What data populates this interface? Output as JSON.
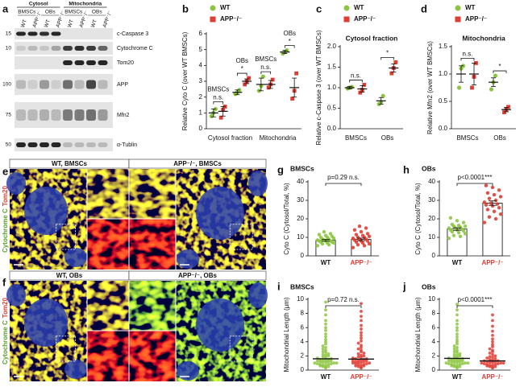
{
  "panels": [
    "a",
    "b",
    "c",
    "d",
    "e",
    "f",
    "g",
    "h",
    "i",
    "j"
  ],
  "blot": {
    "fractions": [
      "Cytosol",
      "Mitochondria"
    ],
    "cell_types": [
      "BMSCs",
      "OBs",
      "BMSCs",
      "OBs"
    ],
    "lanes": [
      "WT",
      "APP⁻/⁻",
      "WT",
      "APP⁻/⁻",
      "WT",
      "APP⁻/⁻",
      "WT",
      "APP⁻/⁻"
    ],
    "rows": [
      {
        "label": "c-Caspase 3",
        "mw": 15
      },
      {
        "label": "Cytochrome C",
        "mw": 10
      },
      {
        "label": "Tom20"
      },
      {
        "label": "APP",
        "mw": 100
      },
      {
        "label": "Mfn2",
        "mw": 75
      },
      {
        "label": "α-Tublin",
        "mw": 50
      }
    ]
  },
  "images": {
    "stain": [
      "Cytochrome C",
      "Tom20"
    ],
    "e": {
      "left": "WT, BMSCs",
      "right": "APP⁻/⁻, BMSCs"
    },
    "f": {
      "left": "WT, OBs",
      "right": "APP⁻/⁻, OBs"
    }
  },
  "chart_data": [
    {
      "type": "dotplot",
      "ylabel": "Relative Cyto C (over WT BMSCs)",
      "groups": [
        "Cytosol fraction",
        "Mitochondria"
      ],
      "categories": [
        "BMSCs",
        "OBs",
        "BMSCs",
        "OBs"
      ],
      "significance": [
        "n.s.",
        "*",
        "n.s.",
        "*"
      ],
      "ylim": [
        0,
        6
      ],
      "yticks": [
        0,
        1,
        2,
        3,
        4,
        5,
        6
      ],
      "series": [
        {
          "name": "WT",
          "color": "#8cc63f",
          "values": [
            1.0,
            2.3,
            2.8,
            4.85
          ],
          "errors": [
            0.25,
            0.15,
            0.4,
            0.1
          ],
          "points": [
            [
              0.8,
              1.0,
              1.25
            ],
            [
              2.2,
              2.3,
              2.45
            ],
            [
              2.4,
              2.7,
              3.3
            ],
            [
              4.75,
              4.85,
              4.95
            ]
          ]
        },
        {
          "name": "APP⁻/⁻",
          "color": "#e03c31",
          "values": [
            1.1,
            3.0,
            2.8,
            2.6
          ],
          "errors": [
            0.3,
            0.15,
            0.25,
            0.6
          ],
          "points": [
            [
              0.7,
              1.2,
              1.4
            ],
            [
              2.8,
              3.0,
              3.2
            ],
            [
              2.6,
              2.8,
              3.1
            ],
            [
              1.9,
              2.4,
              3.5
            ]
          ]
        }
      ]
    },
    {
      "type": "dotplot",
      "title": "Cytosol fraction",
      "ylabel": "Relative c-Caspase 3 (over WT BMSCs)",
      "categories": [
        "BMSCs",
        "OBs"
      ],
      "significance": [
        "n.s.",
        "*"
      ],
      "ylim": [
        0,
        2
      ],
      "yticks": [
        {
          "value": 0,
          "label": "0.0"
        },
        {
          "value": 0.5,
          "label": "0.5"
        },
        {
          "value": 1,
          "label": "1.0"
        },
        {
          "value": 1.5,
          "label": "1.5"
        },
        {
          "value": 2,
          "label": "2.0"
        }
      ],
      "series": [
        {
          "name": "WT",
          "color": "#8cc63f",
          "values": [
            1.0,
            0.68
          ],
          "errors": [
            0.03,
            0.08
          ],
          "points": [
            [
              0.98,
              1.0,
              1.02
            ],
            [
              0.6,
              0.65,
              0.8
            ]
          ]
        },
        {
          "name": "APP⁻/⁻",
          "color": "#e03c31",
          "values": [
            0.97,
            1.48
          ],
          "errors": [
            0.08,
            0.1
          ],
          "points": [
            [
              0.88,
              0.95,
              1.07
            ],
            [
              1.35,
              1.48,
              1.62
            ]
          ]
        }
      ]
    },
    {
      "type": "dotplot",
      "title": "Mitochondria",
      "ylabel": "Relative Mfn2 (over WT BMSCs)",
      "categories": [
        "BMSCs",
        "OBs"
      ],
      "significance": [
        "n.s.",
        "*"
      ],
      "ylim": [
        0,
        1.5
      ],
      "yticks": [
        {
          "value": 0,
          "label": "0.0"
        },
        {
          "value": 0.5,
          "label": "0.5"
        },
        {
          "value": 1,
          "label": "1.0"
        },
        {
          "value": 1.5,
          "label": "1.5"
        }
      ],
      "series": [
        {
          "name": "WT",
          "color": "#8cc63f",
          "values": [
            1.0,
            0.85
          ],
          "errors": [
            0.15,
            0.08
          ],
          "points": [
            [
              0.75,
              1.1,
              1.15
            ],
            [
              0.72,
              0.85,
              0.97
            ]
          ]
        },
        {
          "name": "APP⁻/⁻",
          "color": "#e03c31",
          "values": [
            1.0,
            0.35
          ],
          "errors": [
            0.2,
            0.04
          ],
          "points": [
            [
              0.75,
              0.95,
              1.2
            ],
            [
              0.3,
              0.35,
              0.4
            ]
          ]
        }
      ]
    },
    {
      "type": "bar",
      "title": "BMSCs",
      "ylabel": "Cyto C (Cytosol/Total, %)",
      "annotation": "p=0.29 n.s.",
      "categories": [
        "WT",
        "APP⁻/⁻"
      ],
      "colors": [
        "#8cc63f",
        "#e03c31"
      ],
      "values": [
        8.4,
        8.9
      ],
      "errors": [
        0.5,
        0.7
      ],
      "points": [
        [
          5.5,
          6,
          6.5,
          7,
          7,
          7.5,
          7.5,
          8,
          8,
          8,
          8.5,
          8.5,
          9,
          9,
          9.5,
          10,
          10,
          10.5,
          11,
          11.5,
          12,
          13
        ],
        [
          4.5,
          5.5,
          6,
          6.5,
          7,
          7.5,
          8,
          8,
          8.5,
          9,
          9,
          9.5,
          10,
          10,
          10.5,
          11,
          11.5,
          12,
          13,
          14,
          15,
          16
        ]
      ],
      "ylim": [
        0,
        40
      ],
      "yticks": [
        0,
        10,
        20,
        30,
        40
      ]
    },
    {
      "type": "bar",
      "title": "OBs",
      "ylabel": "Cyto C (Cytosol/Total, %)",
      "annotation": "p<0.0001***",
      "categories": [
        "WT",
        "APP⁻/⁻"
      ],
      "colors": [
        "#8cc63f",
        "#e03c31"
      ],
      "values": [
        14.5,
        28.5
      ],
      "errors": [
        0.7,
        1.2
      ],
      "points": [
        [
          9.5,
          10.5,
          11,
          12,
          12.5,
          13,
          13.5,
          14,
          14,
          14.5,
          15,
          15,
          15.5,
          16,
          16,
          16.5,
          17,
          18,
          19,
          20.5
        ],
        [
          18,
          20,
          21,
          22.5,
          24,
          25,
          26,
          27,
          27.5,
          28,
          28.5,
          29,
          30,
          31,
          32,
          33,
          34,
          35.5,
          37,
          38
        ]
      ],
      "ylim": [
        0,
        40
      ],
      "yticks": [
        0,
        10,
        20,
        30,
        40
      ]
    },
    {
      "type": "swarm",
      "title": "BMSCs",
      "ylabel": "Mitochondrial Length (μm)",
      "annotation": "p=0.72 n.s.",
      "categories": [
        "WT",
        "APP⁻/⁻"
      ],
      "colors": [
        "#8cc63f",
        "#e03c31"
      ],
      "values": [
        1.6,
        1.55
      ],
      "points": [
        [
          0.3,
          0.4,
          0.5,
          0.5,
          0.6,
          0.7,
          0.7,
          0.8,
          0.8,
          0.9,
          0.9,
          1.0,
          1.0,
          1.0,
          1.1,
          1.1,
          1.2,
          1.2,
          1.3,
          1.3,
          1.4,
          1.4,
          1.5,
          1.5,
          1.6,
          1.7,
          1.8,
          1.9,
          2.0,
          2.1,
          2.2,
          2.3,
          2.5,
          2.6,
          2.8,
          3.0,
          3.2,
          3.4,
          3.7,
          4.0,
          4.3,
          4.7,
          5.1,
          5.6,
          6.0,
          6.5,
          7.0,
          7.8,
          8.5,
          9.6
        ],
        [
          0.3,
          0.4,
          0.5,
          0.6,
          0.6,
          0.7,
          0.8,
          0.8,
          0.9,
          0.9,
          1.0,
          1.0,
          1.1,
          1.1,
          1.2,
          1.2,
          1.3,
          1.3,
          1.4,
          1.4,
          1.5,
          1.6,
          1.6,
          1.7,
          1.8,
          1.9,
          2.0,
          2.1,
          2.3,
          2.4,
          2.6,
          2.8,
          3.0,
          3.2,
          3.5,
          3.8,
          4.1,
          4.5,
          4.9,
          5.3,
          5.8,
          6.3,
          7.0,
          7.6,
          8.3,
          9.4
        ]
      ],
      "ylim": [
        0,
        10
      ],
      "yticks": [
        0,
        2,
        4,
        6,
        8,
        10
      ]
    },
    {
      "type": "swarm",
      "title": "OBs",
      "ylabel": "Mitochondrial Length (μm)",
      "annotation": "p<0.0001***",
      "categories": [
        "WT",
        "APP⁻/⁻"
      ],
      "colors": [
        "#8cc63f",
        "#e03c31"
      ],
      "values": [
        1.65,
        1.3
      ],
      "points": [
        [
          0.3,
          0.4,
          0.5,
          0.5,
          0.6,
          0.7,
          0.7,
          0.8,
          0.8,
          0.9,
          0.9,
          1.0,
          1.0,
          1.0,
          1.1,
          1.1,
          1.2,
          1.2,
          1.3,
          1.3,
          1.4,
          1.4,
          1.5,
          1.5,
          1.6,
          1.7,
          1.8,
          1.9,
          2.0,
          2.1,
          2.2,
          2.3,
          2.5,
          2.6,
          2.8,
          3.0,
          3.2,
          3.4,
          3.7,
          4.0,
          4.3,
          4.7,
          5.1,
          5.6,
          6.0,
          6.5,
          7.0,
          7.8,
          8.5,
          9.3
        ],
        [
          0.3,
          0.4,
          0.5,
          0.5,
          0.6,
          0.7,
          0.7,
          0.8,
          0.8,
          0.9,
          0.9,
          1.0,
          1.0,
          1.0,
          1.1,
          1.1,
          1.2,
          1.2,
          1.3,
          1.3,
          1.4,
          1.5,
          1.6,
          1.7,
          1.8,
          1.9,
          2.0,
          2.2,
          2.4,
          2.6,
          2.8,
          3.0,
          3.3,
          3.6,
          4.0,
          4.4,
          4.9,
          5.5,
          6.2,
          7.0,
          7.8
        ]
      ],
      "ylim": [
        0,
        10
      ],
      "yticks": [
        0,
        2,
        4,
        6,
        8,
        10
      ]
    }
  ]
}
